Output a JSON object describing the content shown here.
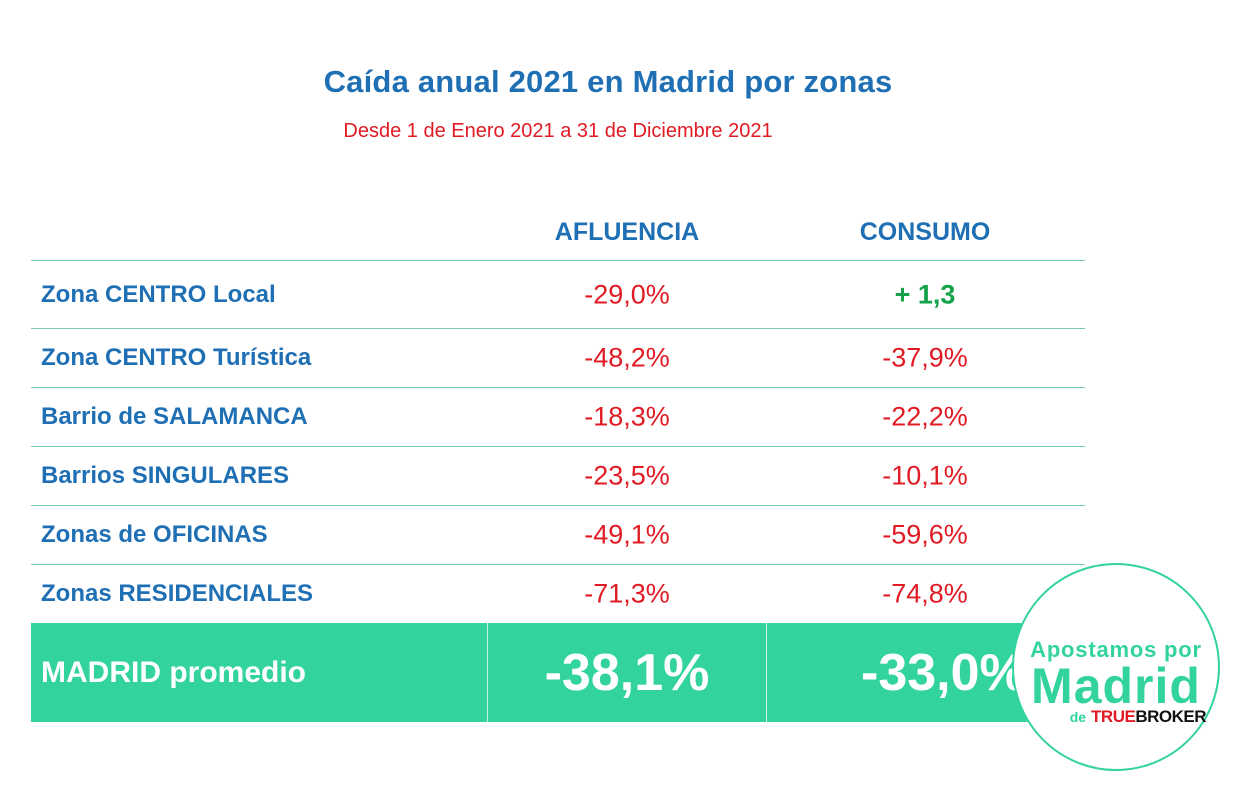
{
  "title": "Caída anual 2021 en Madrid por zonas",
  "subtitle": "Desde 1 de Enero 2021 a 31 de Diciembre 2021",
  "columns": {
    "afluencia": "AFLUENCIA",
    "consumo": "CONSUMO"
  },
  "rows": [
    {
      "zona": "Zona CENTRO Local",
      "afluencia": "-29,0%",
      "consumo": "+ 1,3"
    },
    {
      "zona": "Zona CENTRO Turística",
      "afluencia": "-48,2%",
      "consumo": "-37,9%"
    },
    {
      "zona": "Barrio de SALAMANCA",
      "afluencia": "-18,3%",
      "consumo": "-22,2%"
    },
    {
      "zona": "Barrios SINGULARES",
      "afluencia": "-23,5%",
      "consumo": "-10,1%"
    },
    {
      "zona": "Zonas de OFICINAS",
      "afluencia": "-49,1%",
      "consumo": "-59,6%"
    },
    {
      "zona": "Zonas RESIDENCIALES",
      "afluencia": "-71,3%",
      "consumo": "-74,8%"
    }
  ],
  "total": {
    "label": "MADRID promedio",
    "afluencia": "-38,1%",
    "consumo": "-33,0%"
  },
  "badge": {
    "line1": "Apostamos por",
    "line2": "Madrid",
    "de": "de",
    "brand_true": "TRUE",
    "brand_broker": "BROKER"
  },
  "colors": {
    "blue": "#1f6fb4",
    "red": "#e01b24",
    "green_positive": "#15a34a",
    "teal": "#33d3a0"
  }
}
